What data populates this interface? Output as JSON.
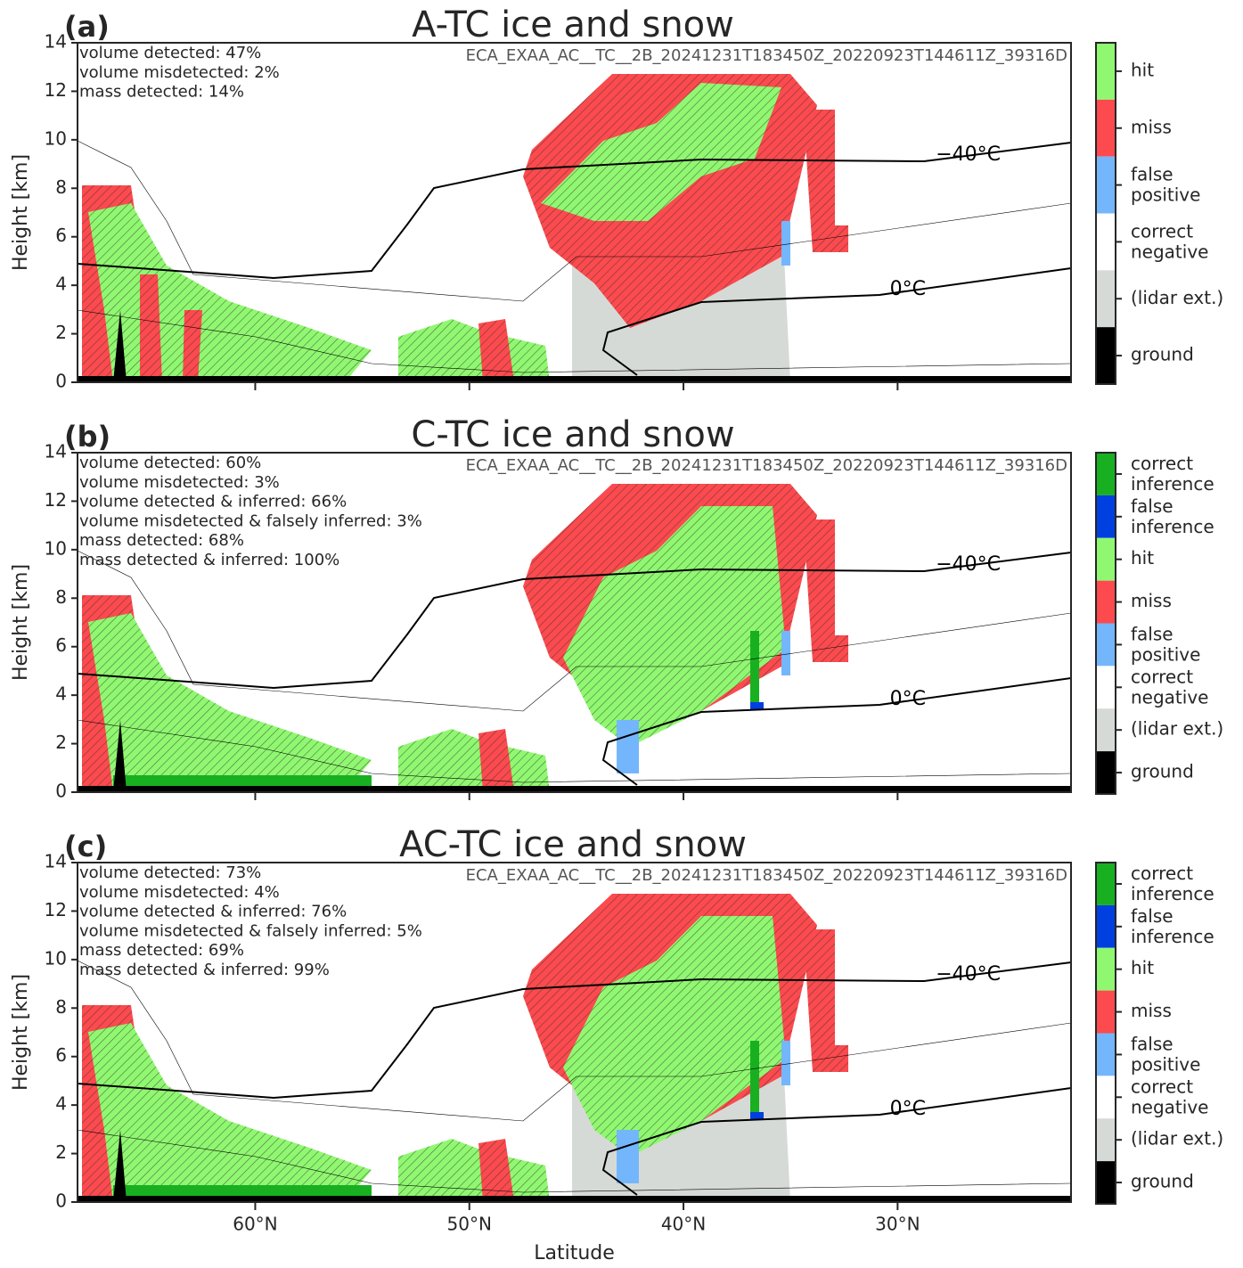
{
  "chart_data": [
    {
      "type": "heatmap",
      "panel_label": "(a)",
      "title": "A-TC ice and snow",
      "annotations": [
        "volume detected: 47%",
        "volume misdetected: 2%",
        "mass detected: 14%"
      ],
      "product": "ECA_EXAA_AC__TC__2B_20241231T183450Z_20220923T144611Z_39316D",
      "contour_labels": [
        "−40°C",
        "0°C"
      ],
      "ylabel": "Height [km]",
      "ylim": [
        0,
        14
      ],
      "yticks": [
        0,
        2,
        4,
        6,
        8,
        10,
        12,
        14
      ],
      "xlim": [
        68.3,
        21.9
      ],
      "xticks": [
        60,
        50,
        40,
        30
      ],
      "legend": [
        {
          "name": "hit",
          "color": "#90f870"
        },
        {
          "name": "miss",
          "color": "#fc4a4e"
        },
        {
          "name": "false positive",
          "color": "#74b6fc"
        },
        {
          "name": "correct negative",
          "color": "#ffffff"
        },
        {
          "name": "(lidar ext.)",
          "color": "#d6dad6"
        },
        {
          "name": "ground",
          "color": "#000000"
        }
      ]
    },
    {
      "type": "heatmap",
      "panel_label": "(b)",
      "title": "C-TC ice and snow",
      "annotations": [
        "volume detected: 60%",
        "volume misdetected: 3%",
        "volume detected & inferred: 66%",
        "volume misdetected & falsely inferred: 3%",
        "mass detected: 68%",
        "mass detected & inferred: 100%"
      ],
      "product": "ECA_EXAA_AC__TC__2B_20241231T183450Z_20220923T144611Z_39316D",
      "contour_labels": [
        "−40°C",
        "0°C"
      ],
      "ylabel": "Height [km]",
      "ylim": [
        0,
        14
      ],
      "yticks": [
        0,
        2,
        4,
        6,
        8,
        10,
        12,
        14
      ],
      "xlim": [
        68.3,
        21.9
      ],
      "xticks": [
        60,
        50,
        40,
        30
      ],
      "legend": [
        {
          "name": "correct inference",
          "color": "#18b020"
        },
        {
          "name": "false inference",
          "color": "#0040e0"
        },
        {
          "name": "hit",
          "color": "#90f870"
        },
        {
          "name": "miss",
          "color": "#fc4a4e"
        },
        {
          "name": "false positive",
          "color": "#74b6fc"
        },
        {
          "name": "correct negative",
          "color": "#ffffff"
        },
        {
          "name": "(lidar ext.)",
          "color": "#d6dad6"
        },
        {
          "name": "ground",
          "color": "#000000"
        }
      ]
    },
    {
      "type": "heatmap",
      "panel_label": "(c)",
      "title": "AC-TC ice and snow",
      "annotations": [
        "volume detected: 73%",
        "volume misdetected: 4%",
        "volume detected & inferred: 76%",
        "volume misdetected & falsely inferred: 5%",
        "mass detected: 69%",
        "mass detected & inferred: 99%"
      ],
      "product": "ECA_EXAA_AC__TC__2B_20241231T183450Z_20220923T144611Z_39316D",
      "contour_labels": [
        "−40°C",
        "0°C"
      ],
      "ylabel": "Height [km]",
      "ylim": [
        0,
        14
      ],
      "yticks": [
        0,
        2,
        4,
        6,
        8,
        10,
        12,
        14
      ],
      "xlabel": "Latitude",
      "xlim": [
        68.3,
        21.9
      ],
      "xticks": [
        {
          "value": 60,
          "label": "60°N"
        },
        {
          "value": 50,
          "label": "50°N"
        },
        {
          "value": 40,
          "label": "40°N"
        },
        {
          "value": 30,
          "label": "30°N"
        }
      ],
      "legend": [
        {
          "name": "correct inference",
          "color": "#18b020"
        },
        {
          "name": "false inference",
          "color": "#0040e0"
        },
        {
          "name": "hit",
          "color": "#90f870"
        },
        {
          "name": "miss",
          "color": "#fc4a4e"
        },
        {
          "name": "false positive",
          "color": "#74b6fc"
        },
        {
          "name": "correct negative",
          "color": "#ffffff"
        },
        {
          "name": "(lidar ext.)",
          "color": "#d6dad6"
        },
        {
          "name": "ground",
          "color": "#000000"
        }
      ]
    }
  ]
}
